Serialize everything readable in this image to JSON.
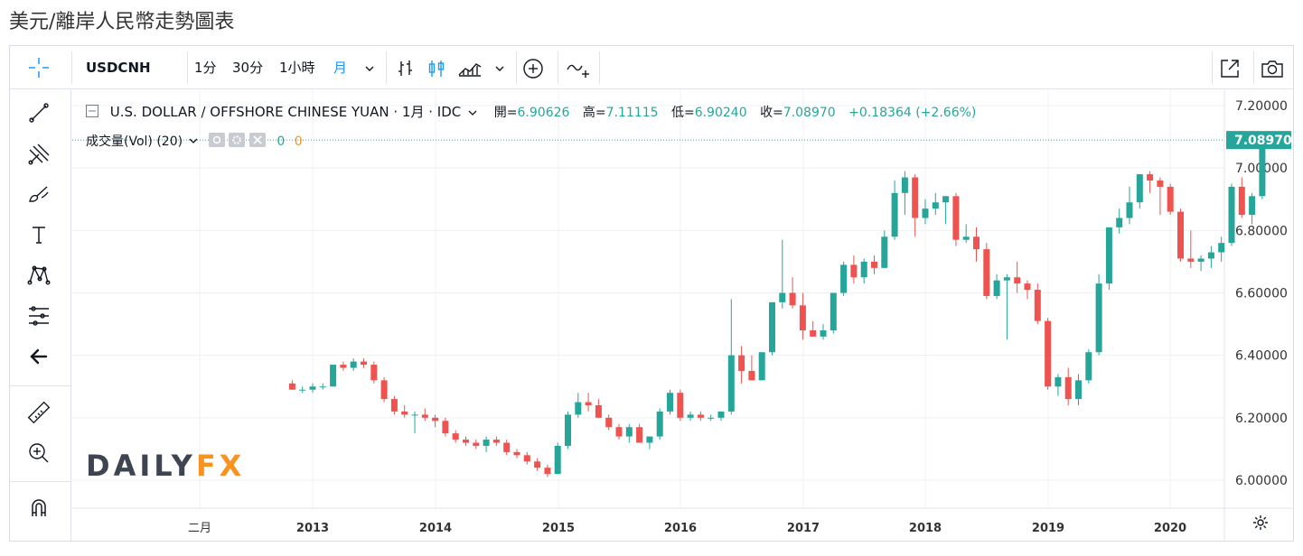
{
  "page": {
    "title": "美元/離岸人民幣走勢圖表"
  },
  "toolbar": {
    "symbol": "USDCNH",
    "intervals": [
      "1分",
      "30分",
      "1小時",
      "月"
    ],
    "active_interval": "月",
    "icons": [
      "crosshair-icon",
      "bar-style-icon",
      "candle-style-icon",
      "area-style-icon",
      "add-indicator-icon",
      "compare-icon",
      "fullscreen-icon",
      "camera-icon"
    ]
  },
  "legend": {
    "symbol_desc": "U.S. DOLLAR / OFFSHORE CHINESE YUAN · 1月 · IDC",
    "open_label": "開=",
    "open": "6.90626",
    "high_label": "高=",
    "high": "7.11115",
    "low_label": "低=",
    "low": "6.90240",
    "close_label": "收=",
    "close": "7.08970",
    "change": "+0.18364 (+2.66%)",
    "volume_label": "成交量(Vol) (20)",
    "volume_values": [
      "0",
      "0"
    ]
  },
  "watermark": {
    "brand_a": "DAILY",
    "brand_b": "FX"
  },
  "colors": {
    "up": "#26a69a",
    "down": "#ef5350",
    "grid": "#eef0f3",
    "axis_text": "#333333",
    "last_price_bg": "#26a69a",
    "fx_orange": "#f7931e",
    "daily_gray": "#3e4451"
  },
  "chart_data": {
    "type": "candlestick",
    "title": "美元/離岸人民幣走勢圖表",
    "series_name": "USDCNH",
    "interval": "1 month",
    "ylim": [
      5.92,
      7.24
    ],
    "y_ticks": [
      6.0,
      6.2,
      6.4,
      6.6,
      6.8,
      7.0,
      7.2
    ],
    "y_tick_labels": [
      "6.00000",
      "6.20000",
      "6.40000",
      "6.60000",
      "6.80000",
      "7.00000",
      "7.20000"
    ],
    "x_ticks": [
      "二月",
      "2013",
      "2014",
      "2015",
      "2016",
      "2017",
      "2018",
      "2019",
      "2020"
    ],
    "last_price": 7.0897,
    "last_price_label": "7.08970",
    "start": "2012-11",
    "candles": [
      [
        6.31,
        6.32,
        6.29,
        6.29
      ],
      [
        6.29,
        6.3,
        6.28,
        6.29
      ],
      [
        6.29,
        6.31,
        6.28,
        6.3
      ],
      [
        6.3,
        6.31,
        6.29,
        6.3
      ],
      [
        6.3,
        6.37,
        6.3,
        6.37
      ],
      [
        6.37,
        6.38,
        6.35,
        6.36
      ],
      [
        6.36,
        6.39,
        6.35,
        6.38
      ],
      [
        6.38,
        6.39,
        6.36,
        6.37
      ],
      [
        6.37,
        6.38,
        6.31,
        6.32
      ],
      [
        6.32,
        6.33,
        6.25,
        6.26
      ],
      [
        6.26,
        6.27,
        6.21,
        6.22
      ],
      [
        6.22,
        6.24,
        6.2,
        6.21
      ],
      [
        6.21,
        6.22,
        6.15,
        6.21
      ],
      [
        6.21,
        6.23,
        6.19,
        6.2
      ],
      [
        6.2,
        6.21,
        6.17,
        6.19
      ],
      [
        6.19,
        6.2,
        6.14,
        6.15
      ],
      [
        6.15,
        6.16,
        6.12,
        6.13
      ],
      [
        6.13,
        6.14,
        6.11,
        6.12
      ],
      [
        6.12,
        6.13,
        6.1,
        6.11
      ],
      [
        6.11,
        6.14,
        6.09,
        6.13
      ],
      [
        6.13,
        6.14,
        6.11,
        6.12
      ],
      [
        6.12,
        6.13,
        6.08,
        6.09
      ],
      [
        6.09,
        6.1,
        6.07,
        6.08
      ],
      [
        6.08,
        6.09,
        6.05,
        6.06
      ],
      [
        6.06,
        6.07,
        6.03,
        6.04
      ],
      [
        6.04,
        6.05,
        6.01,
        6.02
      ],
      [
        6.02,
        6.12,
        6.02,
        6.11
      ],
      [
        6.11,
        6.22,
        6.1,
        6.21
      ],
      [
        6.21,
        6.28,
        6.2,
        6.25
      ],
      [
        6.25,
        6.28,
        6.22,
        6.24
      ],
      [
        6.24,
        6.26,
        6.2,
        6.2
      ],
      [
        6.2,
        6.21,
        6.16,
        6.17
      ],
      [
        6.17,
        6.18,
        6.13,
        6.14
      ],
      [
        6.14,
        6.18,
        6.12,
        6.17
      ],
      [
        6.17,
        6.18,
        6.12,
        6.12
      ],
      [
        6.12,
        6.14,
        6.1,
        6.14
      ],
      [
        6.14,
        6.23,
        6.13,
        6.22
      ],
      [
        6.22,
        6.29,
        6.21,
        6.28
      ],
      [
        6.28,
        6.29,
        6.19,
        6.2
      ],
      [
        6.2,
        6.22,
        6.19,
        6.21
      ],
      [
        6.21,
        6.22,
        6.19,
        6.2
      ],
      [
        6.2,
        6.21,
        6.19,
        6.2
      ],
      [
        6.2,
        6.22,
        6.19,
        6.22
      ],
      [
        6.22,
        6.58,
        6.21,
        6.4
      ],
      [
        6.4,
        6.43,
        6.31,
        6.35
      ],
      [
        6.35,
        6.4,
        6.32,
        6.32
      ],
      [
        6.32,
        6.41,
        6.32,
        6.41
      ],
      [
        6.41,
        6.57,
        6.4,
        6.57
      ],
      [
        6.57,
        6.77,
        6.55,
        6.6
      ],
      [
        6.6,
        6.65,
        6.55,
        6.56
      ],
      [
        6.56,
        6.6,
        6.45,
        6.48
      ],
      [
        6.48,
        6.51,
        6.46,
        6.46
      ],
      [
        6.46,
        6.5,
        6.45,
        6.48
      ],
      [
        6.48,
        6.6,
        6.47,
        6.6
      ],
      [
        6.6,
        6.7,
        6.59,
        6.69
      ],
      [
        6.69,
        6.72,
        6.63,
        6.65
      ],
      [
        6.65,
        6.71,
        6.63,
        6.7
      ],
      [
        6.7,
        6.72,
        6.66,
        6.68
      ],
      [
        6.68,
        6.8,
        6.68,
        6.78
      ],
      [
        6.78,
        6.96,
        6.77,
        6.92
      ],
      [
        6.92,
        6.99,
        6.85,
        6.97
      ],
      [
        6.97,
        6.98,
        6.78,
        6.84
      ],
      [
        6.84,
        6.9,
        6.82,
        6.87
      ],
      [
        6.87,
        6.92,
        6.85,
        6.89
      ],
      [
        6.89,
        6.91,
        6.82,
        6.91
      ],
      [
        6.91,
        6.92,
        6.75,
        6.77
      ],
      [
        6.77,
        6.82,
        6.76,
        6.78
      ],
      [
        6.78,
        6.81,
        6.7,
        6.74
      ],
      [
        6.74,
        6.76,
        6.58,
        6.59
      ],
      [
        6.59,
        6.66,
        6.58,
        6.64
      ],
      [
        6.64,
        6.66,
        6.45,
        6.65
      ],
      [
        6.65,
        6.7,
        6.6,
        6.63
      ],
      [
        6.63,
        6.64,
        6.58,
        6.61
      ],
      [
        6.61,
        6.63,
        6.5,
        6.51
      ],
      [
        6.51,
        6.52,
        6.29,
        6.3
      ],
      [
        6.3,
        6.34,
        6.27,
        6.33
      ],
      [
        6.33,
        6.36,
        6.24,
        6.26
      ],
      [
        6.26,
        6.34,
        6.24,
        6.32
      ],
      [
        6.32,
        6.42,
        6.31,
        6.41
      ],
      [
        6.41,
        6.66,
        6.4,
        6.63
      ],
      [
        6.63,
        6.81,
        6.61,
        6.81
      ],
      [
        6.81,
        6.87,
        6.79,
        6.84
      ],
      [
        6.84,
        6.94,
        6.82,
        6.89
      ],
      [
        6.89,
        6.98,
        6.87,
        6.98
      ],
      [
        6.98,
        6.99,
        6.92,
        6.96
      ],
      [
        6.96,
        6.97,
        6.85,
        6.94
      ],
      [
        6.94,
        6.95,
        6.85,
        6.86
      ],
      [
        6.86,
        6.87,
        6.7,
        6.71
      ],
      [
        6.71,
        6.8,
        6.68,
        6.7
      ],
      [
        6.7,
        6.72,
        6.67,
        6.71
      ],
      [
        6.71,
        6.75,
        6.68,
        6.73
      ],
      [
        6.73,
        6.78,
        6.7,
        6.76
      ],
      [
        6.76,
        6.95,
        6.75,
        6.94
      ],
      [
        6.94,
        6.97,
        6.84,
        6.85
      ],
      [
        6.85,
        6.92,
        6.82,
        6.91
      ],
      [
        6.91,
        7.11,
        6.9,
        7.09
      ]
    ]
  }
}
